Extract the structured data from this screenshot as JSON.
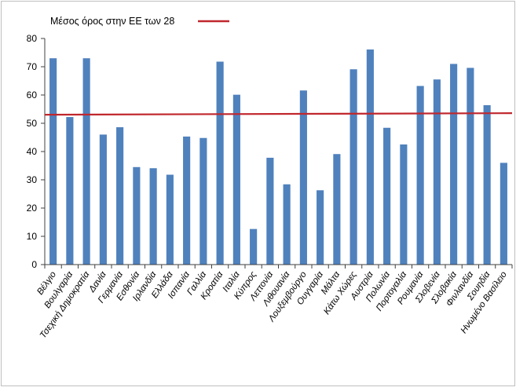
{
  "chart_data": {
    "type": "bar",
    "categories": [
      "Βέλγιο",
      "Βουλγαρία",
      "Τσεχική Δημοκρατία",
      "Δανία",
      "Γερμανία",
      "Εσθονία",
      "Ιρλανδία",
      "Ελλάδα",
      "Ισπανία",
      "Γαλλία",
      "Κροατία",
      "Ιταλία",
      "Κύπρος",
      "Λεττονία",
      "Λιθουανία",
      "Λουξεμβούργο",
      "Ουγγαρία",
      "Μάλτα",
      "Κάτω Χώρες",
      "Αυστρία",
      "Πολωνία",
      "Πορτογαλία",
      "Ρουμανία",
      "Σλοβενία",
      "Σλοβακία",
      "Φινλανδία",
      "Σουηδία",
      "Ηνωμένο Βασίλειο"
    ],
    "values": [
      73,
      52.2,
      73,
      46,
      48.6,
      34.5,
      34.1,
      31.8,
      45.3,
      44.8,
      71.8,
      60.1,
      12.6,
      37.8,
      28.4,
      61.6,
      26.3,
      39.1,
      69.1,
      76.1,
      48.4,
      42.5,
      63.2,
      65.5,
      71,
      69.6,
      56.4,
      36
    ],
    "ylim": [
      0,
      80
    ],
    "yticks": [
      0,
      10,
      20,
      30,
      40,
      50,
      60,
      70,
      80
    ],
    "reference_line": {
      "name": "Μέσος όρος στην ΕΕ των 28",
      "value": 53.3,
      "color": "#c0272d"
    },
    "bar_color": "#4f81bd",
    "grid": false,
    "legend": "top-left"
  }
}
